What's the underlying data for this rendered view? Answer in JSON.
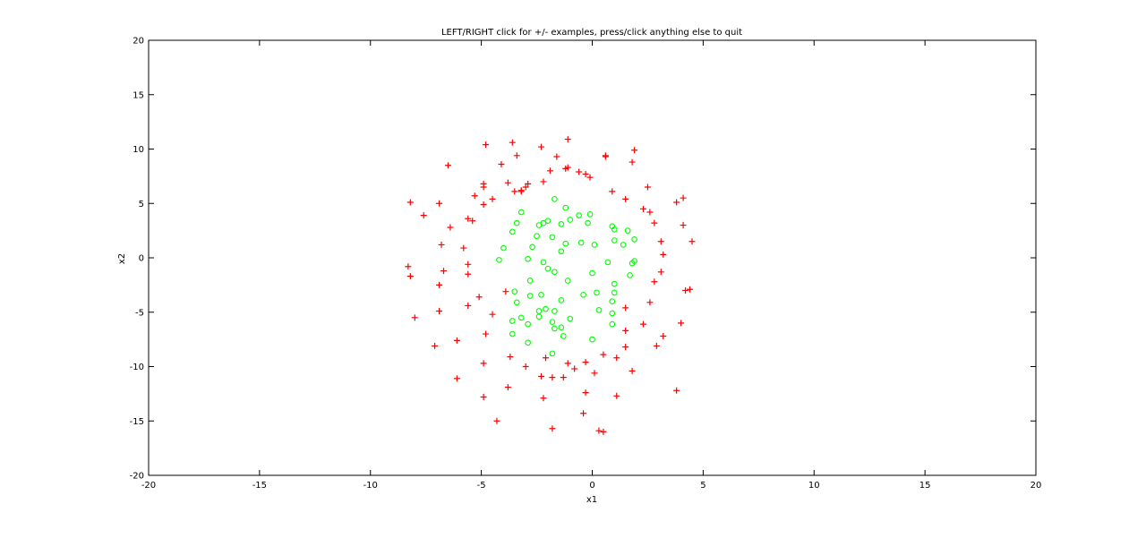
{
  "chart_data": {
    "type": "scatter",
    "title": "LEFT/RIGHT click for +/- examples, press/click anything else to quit",
    "xlabel": "x1",
    "ylabel": "x2",
    "xlim": [
      -20,
      20
    ],
    "ylim": [
      -20,
      20
    ],
    "xticks": [
      -20,
      -15,
      -10,
      -5,
      0,
      5,
      10,
      15,
      20
    ],
    "yticks": [
      -20,
      -15,
      -10,
      -5,
      0,
      5,
      10,
      15,
      20
    ],
    "grid": false,
    "legend": "none",
    "series": [
      {
        "marker": "plus",
        "color": "#ff0000",
        "points": [
          [
            -8.2,
            5.1
          ],
          [
            -7.6,
            3.9
          ],
          [
            -6.9,
            5.0
          ],
          [
            -6.5,
            8.5
          ],
          [
            -6.4,
            2.8
          ],
          [
            -6.8,
            1.2
          ],
          [
            -8.3,
            -0.8
          ],
          [
            -8.2,
            -1.7
          ],
          [
            -6.7,
            -1.2
          ],
          [
            -6.9,
            -2.5
          ],
          [
            -8.0,
            -5.5
          ],
          [
            -6.9,
            -4.9
          ],
          [
            -7.1,
            -8.1
          ],
          [
            -6.1,
            -7.6
          ],
          [
            -6.1,
            -11.1
          ],
          [
            -5.1,
            -3.6
          ],
          [
            -5.6,
            -4.4
          ],
          [
            -5.6,
            -1.5
          ],
          [
            -5.6,
            -0.6
          ],
          [
            -5.8,
            0.9
          ],
          [
            -5.6,
            3.6
          ],
          [
            -5.4,
            3.4
          ],
          [
            -5.3,
            5.7
          ],
          [
            -4.9,
            4.9
          ],
          [
            -4.9,
            6.5
          ],
          [
            -4.9,
            6.8
          ],
          [
            -4.8,
            10.4
          ],
          [
            -4.5,
            5.4
          ],
          [
            -4.1,
            8.6
          ],
          [
            -3.8,
            6.9
          ],
          [
            -3.6,
            10.6
          ],
          [
            -3.5,
            6.1
          ],
          [
            -3.4,
            9.4
          ],
          [
            -3.2,
            6.1
          ],
          [
            -3.2,
            6.2
          ],
          [
            -3.0,
            6.5
          ],
          [
            -2.9,
            6.8
          ],
          [
            -2.3,
            10.2
          ],
          [
            -2.2,
            7.0
          ],
          [
            -1.9,
            8.0
          ],
          [
            -1.6,
            9.3
          ],
          [
            -1.2,
            8.2
          ],
          [
            -1.1,
            8.3
          ],
          [
            -1.1,
            10.9
          ],
          [
            -0.6,
            7.9
          ],
          [
            -0.3,
            7.7
          ],
          [
            -0.1,
            7.4
          ],
          [
            0.6,
            9.3
          ],
          [
            0.6,
            9.4
          ],
          [
            0.9,
            6.1
          ],
          [
            1.5,
            5.4
          ],
          [
            1.8,
            8.8
          ],
          [
            1.9,
            9.9
          ],
          [
            2.3,
            4.5
          ],
          [
            2.6,
            4.2
          ],
          [
            2.5,
            6.5
          ],
          [
            2.8,
            3.2
          ],
          [
            3.1,
            1.5
          ],
          [
            3.2,
            0.3
          ],
          [
            3.1,
            -1.3
          ],
          [
            2.8,
            -2.2
          ],
          [
            3.8,
            5.1
          ],
          [
            4.1,
            5.5
          ],
          [
            4.1,
            3.0
          ],
          [
            4.5,
            1.5
          ],
          [
            4.2,
            -3.0
          ],
          [
            4.4,
            -2.9
          ],
          [
            4.0,
            -6.0
          ],
          [
            3.8,
            -12.2
          ],
          [
            3.2,
            -7.2
          ],
          [
            2.9,
            -8.1
          ],
          [
            2.3,
            -6.1
          ],
          [
            2.6,
            -4.1
          ],
          [
            1.5,
            -4.6
          ],
          [
            1.5,
            -6.7
          ],
          [
            1.5,
            -8.2
          ],
          [
            1.8,
            -10.4
          ],
          [
            1.1,
            -9.2
          ],
          [
            1.1,
            -12.7
          ],
          [
            0.5,
            -8.9
          ],
          [
            0.5,
            -16.0
          ],
          [
            0.3,
            -15.9
          ],
          [
            0.1,
            -10.6
          ],
          [
            -0.3,
            -9.6
          ],
          [
            -0.3,
            -12.4
          ],
          [
            -0.4,
            -14.3
          ],
          [
            -0.8,
            -10.2
          ],
          [
            -1.1,
            -9.7
          ],
          [
            -1.3,
            -11.0
          ],
          [
            -1.8,
            -11.0
          ],
          [
            -1.8,
            -15.7
          ],
          [
            -2.2,
            -12.9
          ],
          [
            -2.3,
            -10.9
          ],
          [
            -2.1,
            -9.2
          ],
          [
            -3.0,
            -10.0
          ],
          [
            -3.7,
            -9.1
          ],
          [
            -3.8,
            -11.9
          ],
          [
            -4.3,
            -15.0
          ],
          [
            -4.9,
            -9.7
          ],
          [
            -4.9,
            -12.8
          ],
          [
            -4.8,
            -7.0
          ],
          [
            -4.5,
            -5.2
          ],
          [
            -3.9,
            -3.1
          ]
        ]
      },
      {
        "marker": "circle",
        "color": "#00ff00",
        "points": [
          [
            -3.2,
            4.2
          ],
          [
            -3.4,
            3.2
          ],
          [
            -3.6,
            2.4
          ],
          [
            -4.0,
            0.9
          ],
          [
            -4.2,
            -0.2
          ],
          [
            -3.5,
            -3.1
          ],
          [
            -3.4,
            -4.1
          ],
          [
            -3.6,
            -5.8
          ],
          [
            -3.2,
            -5.5
          ],
          [
            -3.6,
            -7.0
          ],
          [
            -2.9,
            -6.1
          ],
          [
            -2.9,
            -7.8
          ],
          [
            -2.8,
            -3.5
          ],
          [
            -2.8,
            -2.1
          ],
          [
            -2.9,
            -0.1
          ],
          [
            -2.7,
            1.0
          ],
          [
            -2.5,
            2.0
          ],
          [
            -2.4,
            3.0
          ],
          [
            -2.0,
            3.4
          ],
          [
            -1.7,
            5.4
          ],
          [
            -1.8,
            1.9
          ],
          [
            -1.4,
            3.1
          ],
          [
            -1.2,
            4.6
          ],
          [
            -1.0,
            3.5
          ],
          [
            -0.6,
            3.9
          ],
          [
            -0.1,
            4.0
          ],
          [
            -0.2,
            3.2
          ],
          [
            -1.2,
            1.3
          ],
          [
            -1.4,
            0.6
          ],
          [
            -2.2,
            -0.4
          ],
          [
            -2.0,
            -1.0
          ],
          [
            -2.3,
            -3.4
          ],
          [
            -2.1,
            -4.7
          ],
          [
            -2.4,
            -4.9
          ],
          [
            -2.4,
            -5.4
          ],
          [
            -1.8,
            -5.9
          ],
          [
            -1.7,
            -4.9
          ],
          [
            -1.4,
            -3.9
          ],
          [
            -1.3,
            -7.2
          ],
          [
            -1.4,
            -6.4
          ],
          [
            -1.7,
            -6.5
          ],
          [
            -1.8,
            -8.8
          ],
          [
            -1.0,
            -5.6
          ],
          [
            -1.1,
            -2.1
          ],
          [
            -1.7,
            -1.3
          ],
          [
            -0.4,
            -3.4
          ],
          [
            0.0,
            -1.4
          ],
          [
            0.2,
            -3.2
          ],
          [
            0.3,
            -4.8
          ],
          [
            0.0,
            -7.5
          ],
          [
            0.9,
            -5.1
          ],
          [
            0.9,
            -6.1
          ],
          [
            0.9,
            -4.0
          ],
          [
            1.0,
            -3.2
          ],
          [
            1.0,
            -2.4
          ],
          [
            1.7,
            -1.6
          ],
          [
            1.8,
            -0.5
          ],
          [
            1.9,
            -0.3
          ],
          [
            1.9,
            1.7
          ],
          [
            1.6,
            2.5
          ],
          [
            1.4,
            1.2
          ],
          [
            1.0,
            1.6
          ],
          [
            0.9,
            2.9
          ],
          [
            1.0,
            2.6
          ],
          [
            0.7,
            -0.4
          ],
          [
            0.1,
            1.2
          ],
          [
            -0.5,
            1.4
          ],
          [
            -2.2,
            3.2
          ]
        ]
      }
    ]
  }
}
